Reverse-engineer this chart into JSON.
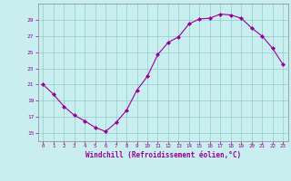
{
  "hours": [
    0,
    1,
    2,
    3,
    4,
    5,
    6,
    7,
    8,
    9,
    10,
    11,
    12,
    13,
    14,
    15,
    16,
    17,
    18,
    19,
    20,
    21,
    22,
    23
  ],
  "values": [
    21.0,
    19.8,
    18.3,
    17.2,
    16.5,
    15.7,
    15.2,
    16.3,
    17.8,
    20.3,
    22.0,
    24.7,
    26.2,
    26.9,
    28.5,
    29.1,
    29.2,
    29.7,
    29.6,
    29.2,
    28.0,
    27.0,
    25.5,
    23.5
  ],
  "line_color": "#990099",
  "marker": "D",
  "marker_size": 2,
  "bg_color": "#c8eef0",
  "grid_color": "#90ccc8",
  "tick_color": "#990099",
  "label_color": "#990099",
  "xlabel": "Windchill (Refroidissement éolien,°C)",
  "ylim": [
    14,
    31
  ],
  "yticks": [
    15,
    17,
    19,
    21,
    23,
    25,
    27,
    29
  ],
  "xlim": [
    -0.5,
    23.5
  ],
  "xticks": [
    0,
    1,
    2,
    3,
    4,
    5,
    6,
    7,
    8,
    9,
    10,
    11,
    12,
    13,
    14,
    15,
    16,
    17,
    18,
    19,
    20,
    21,
    22,
    23
  ]
}
